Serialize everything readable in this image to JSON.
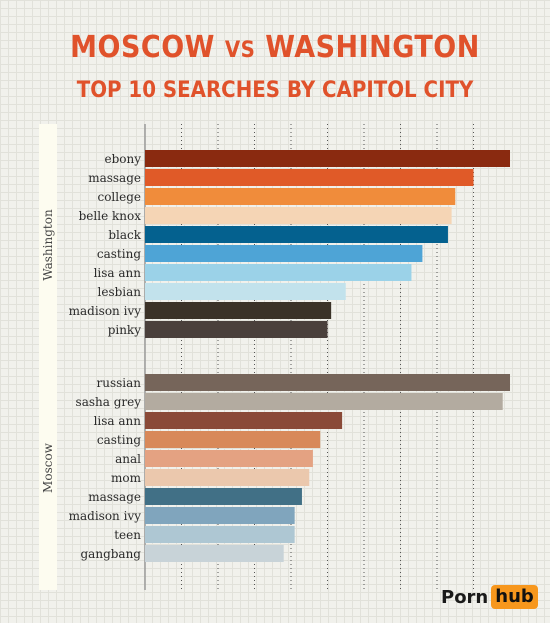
{
  "title": {
    "city_a": "MOSCOW",
    "vs": "VS",
    "city_b": "WASHINGTON",
    "subtitle": "TOP 10 SEARCHES BY CAPITOL CITY"
  },
  "logo": {
    "part1": "Porn",
    "part2": "hub"
  },
  "chart_data": {
    "type": "bar",
    "orientation": "horizontal",
    "title": "MOSCOW VS WASHINGTON",
    "subtitle": "TOP 10 SEARCHES BY CAPITOL CITY",
    "xlim": [
      0,
      10
    ],
    "grid": true,
    "groups": [
      {
        "name": "Washington",
        "categories": [
          "ebony",
          "massage",
          "college",
          "belle knox",
          "black",
          "casting",
          "lisa ann",
          "lesbian",
          "madison ivy",
          "pinky"
        ],
        "values": [
          10.0,
          9.0,
          8.5,
          8.4,
          8.3,
          7.6,
          7.3,
          5.5,
          5.1,
          5.0
        ],
        "colors": [
          "#8a2a10",
          "#e05a28",
          "#f08c3b",
          "#f5d5b5",
          "#04618f",
          "#4ea4d6",
          "#9bd2e8",
          "#c2e2ec",
          "#3a3228",
          "#4a403c"
        ]
      },
      {
        "name": "Moscow",
        "categories": [
          "russian",
          "sasha grey",
          "lisa ann",
          "casting",
          "anal",
          "mom",
          "massage",
          "madison ivy",
          "teen",
          "gangbang"
        ],
        "values": [
          10.0,
          9.8,
          5.4,
          4.8,
          4.6,
          4.5,
          4.3,
          4.1,
          4.1,
          3.8
        ],
        "colors": [
          "#76655a",
          "#b3aba0",
          "#8a4a38",
          "#d8895a",
          "#e4a282",
          "#ebc8ad",
          "#417086",
          "#80a5bd",
          "#aec7d3",
          "#c8d3d8"
        ]
      }
    ]
  }
}
